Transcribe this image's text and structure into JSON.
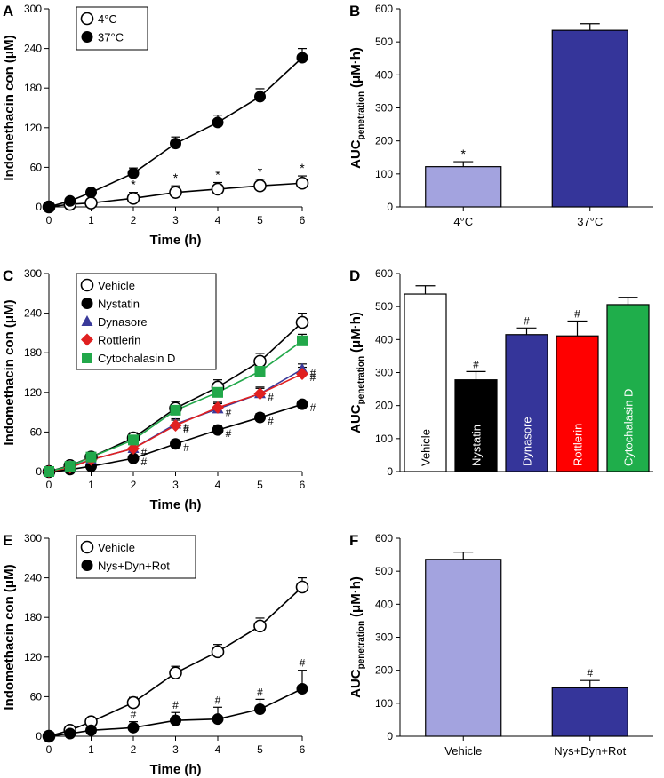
{
  "chart_data": [
    {
      "id": "A",
      "type": "line",
      "panel_label": "A",
      "xlabel": "Time (h)",
      "ylabel": "Indomethacin con (μM)",
      "xlim": [
        0,
        6
      ],
      "ylim": [
        0,
        300
      ],
      "xticks": [
        "0",
        "1",
        "2",
        "3",
        "4",
        "5",
        "6"
      ],
      "yticks": [
        "0",
        "60",
        "120",
        "180",
        "240",
        "300"
      ],
      "x": [
        0,
        0.5,
        1,
        2,
        3,
        4,
        5,
        6
      ],
      "series": [
        {
          "name": "4°C",
          "marker": "open-circle",
          "color": "#000000",
          "values": [
            0,
            4,
            6,
            13,
            22,
            27,
            32,
            36
          ],
          "errors": [
            0,
            3,
            4,
            9,
            10,
            10,
            10,
            11
          ],
          "annotations": [
            "",
            "",
            "",
            "*",
            "*",
            "*",
            "*",
            "*"
          ]
        },
        {
          "name": "37°C",
          "marker": "filled-circle",
          "color": "#000000",
          "values": [
            0,
            9,
            22,
            51,
            96,
            128,
            167,
            226
          ],
          "errors": [
            0,
            3,
            4,
            8,
            10,
            11,
            12,
            14
          ],
          "annotations": [
            "",
            "",
            "",
            "",
            "",
            "",
            "",
            ""
          ]
        }
      ]
    },
    {
      "id": "B",
      "type": "bar",
      "panel_label": "B",
      "ylabel_main": "AUC",
      "ylabel_sub": "penetration",
      "ylabel_unit": "(μM·h)",
      "ylim": [
        0,
        600
      ],
      "yticks": [
        "0",
        "100",
        "200",
        "300",
        "400",
        "500",
        "600"
      ],
      "categories": [
        "4°C",
        "37°C"
      ],
      "values": [
        122,
        535
      ],
      "errors": [
        15,
        20
      ],
      "colors": [
        "#A3A3DF",
        "#35359A"
      ],
      "annotations": [
        "*",
        ""
      ],
      "labels_inside": false
    },
    {
      "id": "C",
      "type": "line",
      "panel_label": "C",
      "xlabel": "Time (h)",
      "ylabel": "Indomethacin con (μM)",
      "xlim": [
        0,
        6
      ],
      "ylim": [
        0,
        300
      ],
      "xticks": [
        "0",
        "1",
        "2",
        "3",
        "4",
        "5",
        "6"
      ],
      "yticks": [
        "0",
        "60",
        "120",
        "180",
        "240",
        "300"
      ],
      "x": [
        0,
        0.5,
        1,
        2,
        3,
        4,
        5,
        6
      ],
      "series": [
        {
          "name": "Vehicle",
          "marker": "open-circle",
          "color": "#000000",
          "values": [
            0,
            9,
            22,
            51,
            96,
            128,
            167,
            226
          ],
          "errors": [
            0,
            3,
            4,
            8,
            10,
            11,
            12,
            14
          ],
          "annotations": [
            "",
            "",
            "",
            "",
            "",
            "",
            "",
            ""
          ]
        },
        {
          "name": "Nystatin",
          "marker": "filled-circle",
          "color": "#000000",
          "values": [
            0,
            3,
            8,
            20,
            42,
            63,
            82,
            102
          ],
          "errors": [
            0,
            2,
            3,
            5,
            6,
            7,
            6,
            5
          ],
          "annotations": [
            "",
            "",
            "",
            "#",
            "#",
            "#",
            "#",
            "#"
          ]
        },
        {
          "name": "Dynasore",
          "marker": "triangle",
          "color": "#3A3A9A",
          "values": [
            0,
            7,
            18,
            35,
            72,
            95,
            118,
            155
          ],
          "errors": [
            0,
            2,
            3,
            6,
            8,
            8,
            8,
            8
          ],
          "annotations": [
            "",
            "",
            "",
            "",
            "#",
            "#",
            "",
            "#"
          ]
        },
        {
          "name": "Rottlerin",
          "marker": "diamond",
          "color": "#E02020",
          "values": [
            0,
            6,
            18,
            35,
            70,
            97,
            118,
            148
          ],
          "errors": [
            0,
            2,
            3,
            6,
            8,
            8,
            10,
            10
          ],
          "annotations": [
            "",
            "",
            "",
            "#",
            "#",
            "",
            "#",
            "#"
          ]
        },
        {
          "name": "Cytochalasin D",
          "marker": "square",
          "color": "#22A84A",
          "values": [
            0,
            8,
            22,
            48,
            93,
            120,
            152,
            198
          ],
          "errors": [
            0,
            3,
            4,
            7,
            8,
            8,
            10,
            10
          ],
          "annotations": [
            "",
            "",
            "",
            "",
            "",
            "",
            "",
            ""
          ]
        }
      ]
    },
    {
      "id": "D",
      "type": "bar",
      "panel_label": "D",
      "ylabel_main": "AUC",
      "ylabel_sub": "penetration",
      "ylabel_unit": "(μM·h)",
      "ylim": [
        0,
        600
      ],
      "yticks": [
        "0",
        "100",
        "200",
        "300",
        "400",
        "500",
        "600"
      ],
      "categories": [
        "Vehicle",
        "Nystatin",
        "Dynasore",
        "Rottlerin",
        "Cytochalasin D"
      ],
      "values": [
        538,
        278,
        415,
        411,
        506
      ],
      "errors": [
        25,
        25,
        20,
        45,
        22
      ],
      "colors": [
        "#FFFFFF",
        "#000000",
        "#35359A",
        "#FF0000",
        "#1FAE4B"
      ],
      "label_colors": [
        "#000000",
        "#FFFFFF",
        "#FFFFFF",
        "#FFFFFF",
        "#FFFFFF"
      ],
      "annotations": [
        "",
        "#",
        "#",
        "#",
        ""
      ],
      "labels_inside": true
    },
    {
      "id": "E",
      "type": "line",
      "panel_label": "E",
      "xlabel": "Time (h)",
      "ylabel": "Indomethacin con (μM)",
      "xlim": [
        0,
        6
      ],
      "ylim": [
        0,
        300
      ],
      "xticks": [
        "0",
        "1",
        "2",
        "3",
        "4",
        "5",
        "6"
      ],
      "yticks": [
        "0",
        "60",
        "120",
        "180",
        "240",
        "300"
      ],
      "x": [
        0,
        0.5,
        1,
        2,
        3,
        4,
        5,
        6
      ],
      "series": [
        {
          "name": "Vehicle",
          "marker": "open-circle",
          "color": "#000000",
          "values": [
            0,
            9,
            22,
            51,
            96,
            128,
            167,
            226
          ],
          "errors": [
            0,
            3,
            4,
            8,
            10,
            11,
            12,
            14
          ],
          "annotations": [
            "",
            "",
            "",
            "",
            "",
            "",
            "",
            ""
          ]
        },
        {
          "name": "Nys+Dyn+Rot",
          "marker": "filled-circle",
          "color": "#000000",
          "values": [
            0,
            4,
            9,
            13,
            24,
            26,
            41,
            72
          ],
          "errors": [
            0,
            2,
            4,
            9,
            12,
            18,
            15,
            28
          ],
          "annotations": [
            "",
            "",
            "",
            "#",
            "#",
            "#",
            "#",
            "#"
          ]
        }
      ]
    },
    {
      "id": "F",
      "type": "bar",
      "panel_label": "F",
      "ylabel_main": "AUC",
      "ylabel_sub": "penetration",
      "ylabel_unit": "(μM·h)",
      "ylim": [
        0,
        600
      ],
      "yticks": [
        "0",
        "100",
        "200",
        "300",
        "400",
        "500",
        "600"
      ],
      "categories": [
        "Vehicle",
        "Nys+Dyn+Rot"
      ],
      "values": [
        536,
        147
      ],
      "errors": [
        22,
        22
      ],
      "colors": [
        "#A3A3DF",
        "#35359A"
      ],
      "annotations": [
        "",
        "#"
      ],
      "labels_inside": false
    }
  ]
}
